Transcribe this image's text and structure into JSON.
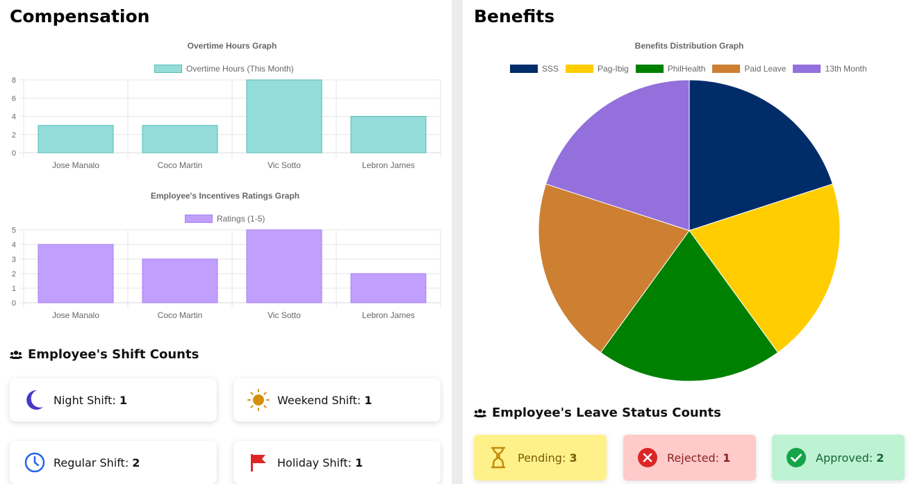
{
  "compensation": {
    "title": "Compensation",
    "overtime_chart": {
      "title": "Overtime Hours Graph",
      "legend": "Overtime Hours (This Month)",
      "color_fill": "#94dcd9",
      "color_border": "#53bdb6",
      "categories": [
        "Jose Manalo",
        "Coco Martin",
        "Vic Sotto",
        "Lebron James"
      ],
      "values": [
        3,
        3,
        8,
        4
      ],
      "ylim": [
        0,
        8
      ],
      "yticks": [
        "0",
        "2",
        "4",
        "6",
        "8"
      ]
    },
    "ratings_chart": {
      "title": "Employee's Incentives Ratings Graph",
      "legend": "Ratings (1-5)",
      "color_fill": "#c19ffd",
      "color_border": "#a77ff5",
      "categories": [
        "Jose Manalo",
        "Coco Martin",
        "Vic Sotto",
        "Lebron James"
      ],
      "values": [
        4,
        3,
        5,
        2
      ],
      "ylim": [
        0,
        5
      ],
      "yticks": [
        "0",
        "1",
        "2",
        "3",
        "4",
        "5"
      ]
    },
    "shift_heading": "Employee's Shift Counts",
    "shifts": [
      {
        "label": "Night Shift: ",
        "count": "1",
        "icon": "moon-icon",
        "color": "#4838c8"
      },
      {
        "label": "Weekend Shift: ",
        "count": "1",
        "icon": "sun-icon",
        "color": "#d4900c"
      },
      {
        "label": "Regular Shift: ",
        "count": "2",
        "icon": "clock-icon",
        "color": "#2563eb"
      },
      {
        "label": "Holiday Shift: ",
        "count": "1",
        "icon": "flag-icon",
        "color": "#dc2626"
      }
    ]
  },
  "benefits": {
    "title": "Benefits",
    "chart": {
      "title": "Benefits Distribution Graph",
      "legend": [
        {
          "label": "SSS",
          "color": "#002c6a"
        },
        {
          "label": "Pag-Ibig",
          "color": "#ffcd00"
        },
        {
          "label": "PhilHealth",
          "color": "#008001"
        },
        {
          "label": "Paid Leave",
          "color": "#cd7f32"
        },
        {
          "label": "13th Month",
          "color": "#9370dc"
        }
      ]
    },
    "leave_heading": "Employee's Leave Status Counts",
    "leave": [
      {
        "label": "Pending: ",
        "count": "3",
        "icon": "hourglass-icon",
        "bg": "#fff18a",
        "fg": "#7a5a06",
        "iconcolor": "#c28a0a"
      },
      {
        "label": "Rejected: ",
        "count": "1",
        "icon": "x-circle-icon",
        "bg": "#ffcaca",
        "fg": "#8b1e1e",
        "iconcolor": "#dc2626"
      },
      {
        "label": "Approved: ",
        "count": "2",
        "icon": "check-circle-icon",
        "bg": "#bdf3d2",
        "fg": "#166534",
        "iconcolor": "#16a34a"
      }
    ]
  },
  "chart_data": [
    {
      "type": "bar",
      "title": "Overtime Hours Graph",
      "categories": [
        "Jose Manalo",
        "Coco Martin",
        "Vic Sotto",
        "Lebron James"
      ],
      "series": [
        {
          "name": "Overtime Hours (This Month)",
          "values": [
            3,
            3,
            8,
            4
          ]
        }
      ],
      "ylim": [
        0,
        8
      ],
      "grid": true,
      "legend": "top"
    },
    {
      "type": "bar",
      "title": "Employee's Incentives Ratings Graph",
      "categories": [
        "Jose Manalo",
        "Coco Martin",
        "Vic Sotto",
        "Lebron James"
      ],
      "series": [
        {
          "name": "Ratings (1-5)",
          "values": [
            4,
            3,
            5,
            2
          ]
        }
      ],
      "ylim": [
        0,
        5
      ],
      "grid": true,
      "legend": "top"
    },
    {
      "type": "pie",
      "title": "Benefits Distribution Graph",
      "categories": [
        "SSS",
        "Pag-Ibig",
        "PhilHealth",
        "Paid Leave",
        "13th Month"
      ],
      "values": [
        1,
        1,
        1,
        1,
        1
      ],
      "legend": "top"
    }
  ]
}
